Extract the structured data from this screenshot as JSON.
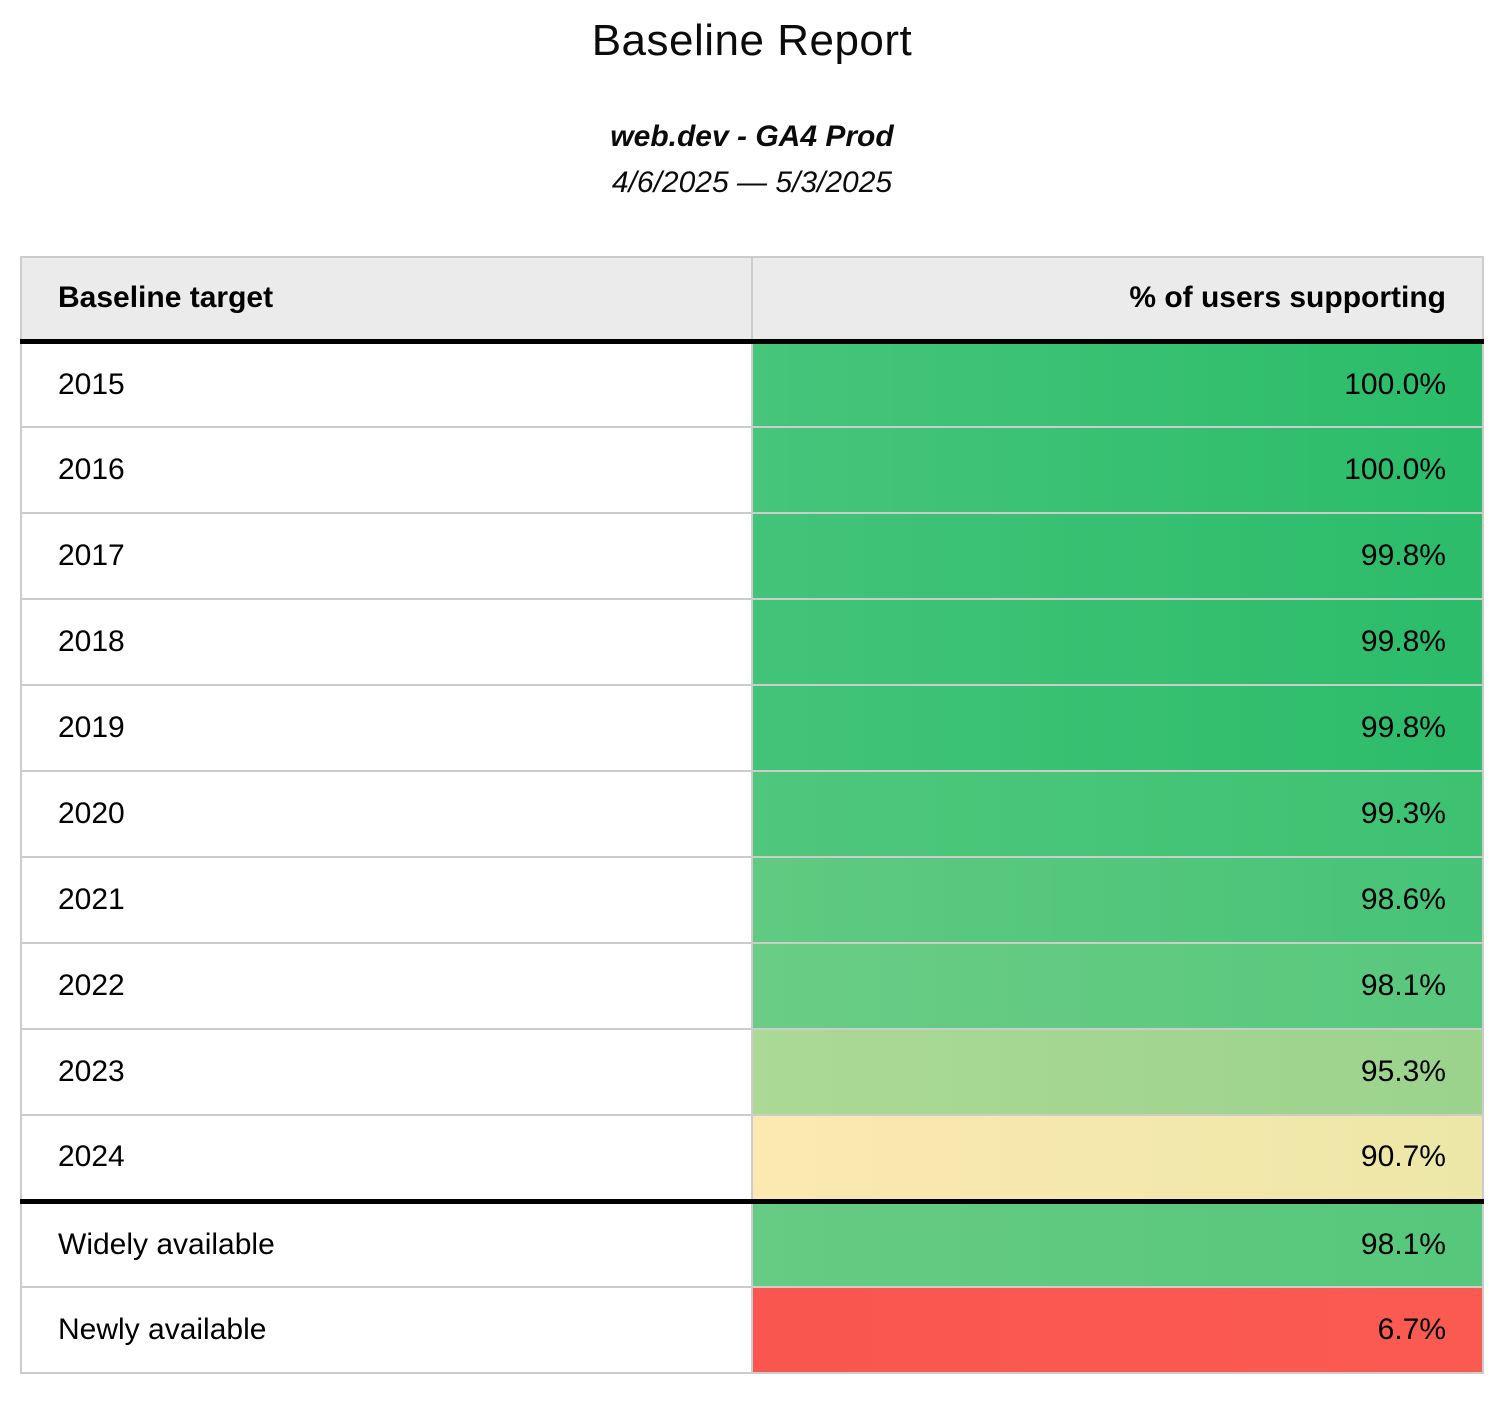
{
  "report": {
    "title": "Baseline Report",
    "subtitle": "web.dev - GA4 Prod",
    "date_range": "4/6/2025 — 5/3/2025"
  },
  "table": {
    "columns": [
      "Baseline target",
      "% of users supporting"
    ],
    "rows": [
      {
        "label": "2015",
        "value": "100.0%",
        "color_left": "#46c57b",
        "color_right": "#2abc69",
        "section_start": false
      },
      {
        "label": "2016",
        "value": "100.0%",
        "color_left": "#46c57b",
        "color_right": "#2abc69",
        "section_start": false
      },
      {
        "label": "2017",
        "value": "99.8%",
        "color_left": "#42c478",
        "color_right": "#2cbc6a",
        "section_start": false
      },
      {
        "label": "2018",
        "value": "99.8%",
        "color_left": "#42c478",
        "color_right": "#2cbc6a",
        "section_start": false
      },
      {
        "label": "2019",
        "value": "99.8%",
        "color_left": "#42c478",
        "color_right": "#2cbc6a",
        "section_start": false
      },
      {
        "label": "2020",
        "value": "99.3%",
        "color_left": "#4fc77c",
        "color_right": "#3dc272",
        "section_start": false
      },
      {
        "label": "2021",
        "value": "98.6%",
        "color_left": "#60ca81",
        "color_right": "#46c377",
        "section_start": false
      },
      {
        "label": "2022",
        "value": "98.1%",
        "color_left": "#6acc85",
        "color_right": "#57c87d",
        "section_start": false
      },
      {
        "label": "2023",
        "value": "95.3%",
        "color_left": "#abd996",
        "color_right": "#9bd38c",
        "section_start": false
      },
      {
        "label": "2024",
        "value": "90.7%",
        "color_left": "#fce9b0",
        "color_right": "#ece7a7",
        "section_start": false
      },
      {
        "label": "Widely available",
        "value": "98.1%",
        "color_left": "#66cb83",
        "color_right": "#56c77b",
        "section_start": true
      },
      {
        "label": "Newly available",
        "value": "6.7%",
        "color_left": "#f9564f",
        "color_right": "#fb5a51",
        "section_start": false
      }
    ]
  },
  "colors": {
    "header_background": "#ebebeb",
    "cell_border": "#cccccc",
    "section_divider": "#000000",
    "good_green": "#2abc69",
    "mid_yellow": "#f5e6a8",
    "bad_red": "#fa5850"
  },
  "chart_data": {
    "type": "table",
    "title": "Baseline Report",
    "subtitle": "web.dev - GA4 Prod",
    "date_range": "4/6/2025 — 5/3/2025",
    "columns": [
      "Baseline target",
      "% of users supporting"
    ],
    "categories": [
      "2015",
      "2016",
      "2017",
      "2018",
      "2019",
      "2020",
      "2021",
      "2022",
      "2023",
      "2024",
      "Widely available",
      "Newly available"
    ],
    "values": [
      100.0,
      100.0,
      99.8,
      99.8,
      99.8,
      99.3,
      98.6,
      98.1,
      95.3,
      90.7,
      98.1,
      6.7
    ],
    "value_unit": "%",
    "layout_hints": "value cells color-coded green (high) through yellow (~90%) to red (low); thick divider separates yearly targets from availability rows"
  }
}
